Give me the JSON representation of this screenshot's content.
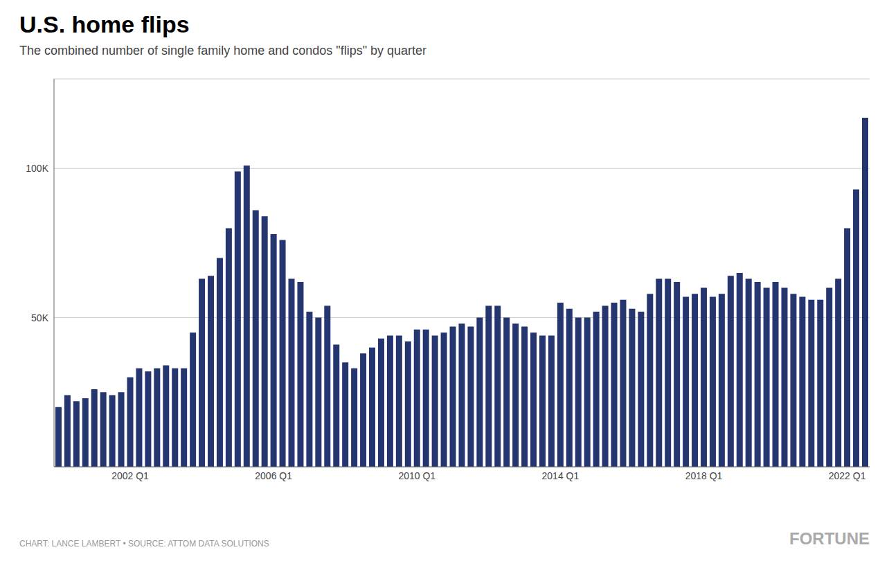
{
  "chart_data": {
    "type": "bar",
    "title": "U.S. home flips",
    "subtitle": "The combined number of single family home and condos \"flips\" by quarter",
    "annotations": [
      "CHART: LANCE LAMBERT • SOURCE: ATTOM DATA SOLUTIONS",
      "FORTUNE"
    ],
    "categories": [
      null,
      null,
      null,
      null,
      null,
      null,
      null,
      null,
      "2002 Q1",
      null,
      null,
      null,
      null,
      null,
      null,
      null,
      null,
      null,
      null,
      null,
      null,
      null,
      null,
      null,
      "2006 Q1",
      null,
      null,
      null,
      null,
      null,
      null,
      null,
      null,
      null,
      null,
      null,
      null,
      null,
      null,
      null,
      "2010 Q1",
      null,
      null,
      null,
      null,
      null,
      null,
      null,
      null,
      null,
      null,
      null,
      null,
      null,
      null,
      null,
      "2014 Q1",
      null,
      null,
      null,
      null,
      null,
      null,
      null,
      null,
      null,
      null,
      null,
      null,
      null,
      null,
      null,
      "2018 Q1",
      null,
      null,
      null,
      null,
      null,
      null,
      null,
      null,
      null,
      null,
      null,
      null,
      null,
      null,
      null,
      "2022 Q1",
      null,
      null
    ],
    "values": [
      20000,
      24000,
      22000,
      23000,
      26000,
      25000,
      24000,
      25000,
      30000,
      33000,
      32000,
      33000,
      34000,
      33000,
      33000,
      45000,
      63000,
      64000,
      70000,
      80000,
      99000,
      101000,
      86000,
      84000,
      78000,
      76000,
      63000,
      62000,
      52000,
      50000,
      54000,
      41000,
      35000,
      33000,
      38000,
      40000,
      43000,
      44000,
      44000,
      42000,
      46000,
      46000,
      44000,
      45000,
      47000,
      48000,
      47000,
      50000,
      54000,
      54000,
      50000,
      48000,
      47000,
      45000,
      44000,
      44000,
      55000,
      53000,
      50000,
      50000,
      52000,
      54000,
      55000,
      56000,
      53000,
      52000,
      58000,
      63000,
      63000,
      62000,
      57000,
      58000,
      60000,
      57000,
      58000,
      64000,
      65000,
      63000,
      62000,
      60000,
      62000,
      60000,
      58000,
      57000,
      56000,
      56000,
      60000,
      63000,
      80000,
      93000,
      117000
    ],
    "color": "#253570",
    "ylim": [
      0,
      130000
    ],
    "yticks": [
      {
        "value": 50000,
        "label": "50K"
      },
      {
        "value": 100000,
        "label": "100K"
      }
    ],
    "grid": true
  }
}
